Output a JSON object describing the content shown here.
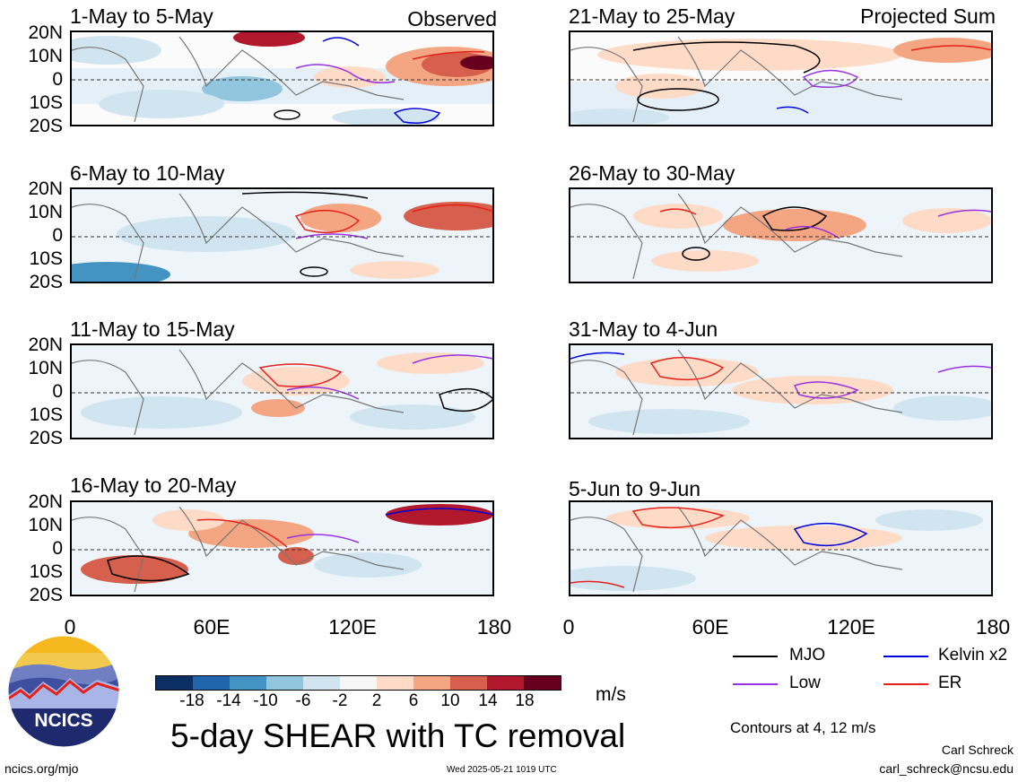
{
  "panels": [
    {
      "title": "1-May to 5-May",
      "tag": "Observed"
    },
    {
      "title": "21-May to 25-May",
      "tag": "Projected Sum"
    },
    {
      "title": "6-May to 10-May",
      "tag": ""
    },
    {
      "title": "26-May to 30-May",
      "tag": ""
    },
    {
      "title": "11-May to 15-May",
      "tag": ""
    },
    {
      "title": "31-May to 4-Jun",
      "tag": ""
    },
    {
      "title": "16-May to 20-May",
      "tag": ""
    },
    {
      "title": "5-Jun to 9-Jun",
      "tag": ""
    }
  ],
  "lat_labels": [
    "20N",
    "10N",
    "0",
    "10S",
    "20S"
  ],
  "lon_labels": [
    "0",
    "60E",
    "120E",
    "180"
  ],
  "colorbar": {
    "colors": [
      "#0b2f63",
      "#2166ac",
      "#4393c3",
      "#92c5de",
      "#d1e5f0",
      "#f7f7f7",
      "#fddbc7",
      "#f4a582",
      "#d6604d",
      "#b2182b",
      "#67001f"
    ],
    "ticks": [
      "-18",
      "-14",
      "-10",
      "-6",
      "-2",
      "2",
      "6",
      "10",
      "14",
      "18"
    ],
    "units": "m/s"
  },
  "legend": [
    {
      "label": "MJO",
      "color": "#000000"
    },
    {
      "label": "Kelvin x2",
      "color": "#0000dd"
    },
    {
      "label": "Low",
      "color": "#9932e0"
    },
    {
      "label": "ER",
      "color": "#e8201a"
    }
  ],
  "logo_text": "NCICS",
  "main_title": "5-day SHEAR with TC removal",
  "contours_note": "Contours at 4, 12 m/s",
  "credit_name": "Carl Schreck",
  "credit_email": "carl_schreck@ncsu.edu",
  "site": "ncics.org/mjo",
  "timestamp": "Wed 2025-05-21 1019 UTC"
}
